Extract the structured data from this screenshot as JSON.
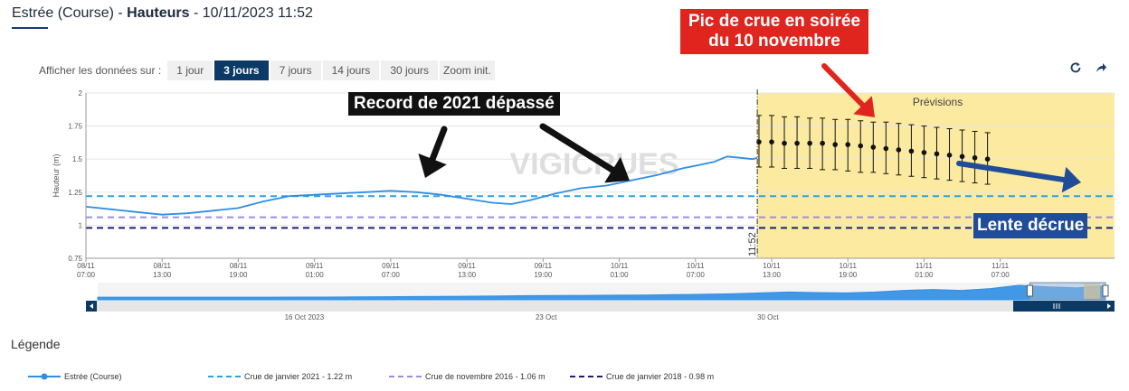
{
  "header": {
    "station": "Estrée (Course)",
    "separator1": " - ",
    "measure": "Hauteurs",
    "separator2": " - ",
    "datetime": "10/11/2023 11:52"
  },
  "range_selector": {
    "label": "Afficher les données sur :",
    "buttons": [
      {
        "label": "1 jour",
        "active": false
      },
      {
        "label": "3 jours",
        "active": true
      },
      {
        "label": "7 jours",
        "active": false
      },
      {
        "label": "14 jours",
        "active": false
      },
      {
        "label": "30 jours",
        "active": false
      },
      {
        "label": "Zoom init.",
        "active": false
      }
    ]
  },
  "tools": {
    "refresh_icon": "refresh-icon",
    "share_icon": "share-arrow-icon"
  },
  "annotations": {
    "record": "Record de 2021 dépassé",
    "pic_line1": "Pic de crue en soirée",
    "pic_line2": "du 10 novembre",
    "decrue": "Lente décrue"
  },
  "colors": {
    "series": "#2e8ee6",
    "crue2021": "#2aa3e6",
    "crue2016": "#9b8ce8",
    "crue2018": "#1a1f7a",
    "forecast_bg": "#fbeaa0",
    "arrow_black": "#111111",
    "arrow_red": "#e0251e",
    "arrow_blue": "#1f4d99"
  },
  "chart_data": {
    "type": "line",
    "ylabel": "Hauteur (m)",
    "ylim": [
      0.75,
      2
    ],
    "yticks": [
      0.75,
      1,
      1.25,
      1.5,
      1.75,
      2
    ],
    "ytick_labels": [
      "0.75",
      "1",
      "1.25",
      "1.5",
      "1.75",
      "2"
    ],
    "xlim": [
      0,
      81
    ],
    "x_unit": "hours after 08/11 07:00",
    "xticks": [
      {
        "x": 0,
        "l1": "08/11",
        "l2": "07:00"
      },
      {
        "x": 6,
        "l1": "08/11",
        "l2": "13:00"
      },
      {
        "x": 12,
        "l1": "08/11",
        "l2": "19:00"
      },
      {
        "x": 18,
        "l1": "09/11",
        "l2": "01:00"
      },
      {
        "x": 24,
        "l1": "09/11",
        "l2": "07:00"
      },
      {
        "x": 30,
        "l1": "09/11",
        "l2": "13:00"
      },
      {
        "x": 36,
        "l1": "09/11",
        "l2": "19:00"
      },
      {
        "x": 42,
        "l1": "10/11",
        "l2": "01:00"
      },
      {
        "x": 48,
        "l1": "10/11",
        "l2": "07:00"
      },
      {
        "x": 54,
        "l1": "10/11",
        "l2": "13:00"
      },
      {
        "x": 60,
        "l1": "10/11",
        "l2": "19:00"
      },
      {
        "x": 66,
        "l1": "11/11",
        "l2": "01:00"
      },
      {
        "x": 72,
        "l1": "11/11",
        "l2": "07:00"
      }
    ],
    "now": {
      "x": 52.87,
      "label": "11:52"
    },
    "forecast_label": "Prévisions",
    "watermark": "VIGICRUES",
    "series": [
      {
        "name": "Estrée (Course)",
        "points": [
          [
            0,
            1.14
          ],
          [
            2,
            1.12
          ],
          [
            4,
            1.1
          ],
          [
            6,
            1.08
          ],
          [
            8,
            1.09
          ],
          [
            10,
            1.11
          ],
          [
            12,
            1.13
          ],
          [
            14,
            1.18
          ],
          [
            16,
            1.22
          ],
          [
            18,
            1.23
          ],
          [
            20,
            1.24
          ],
          [
            22,
            1.25
          ],
          [
            24,
            1.26
          ],
          [
            26,
            1.25
          ],
          [
            28,
            1.23
          ],
          [
            30,
            1.2
          ],
          [
            32,
            1.17
          ],
          [
            33.5,
            1.16
          ],
          [
            35,
            1.19
          ],
          [
            37,
            1.24
          ],
          [
            39,
            1.28
          ],
          [
            41,
            1.3
          ],
          [
            43,
            1.34
          ],
          [
            45,
            1.38
          ],
          [
            47,
            1.43
          ],
          [
            48.5,
            1.46
          ],
          [
            49.5,
            1.48
          ],
          [
            50.5,
            1.52
          ],
          [
            51.5,
            1.51
          ],
          [
            52.5,
            1.5
          ],
          [
            52.87,
            1.51
          ]
        ]
      }
    ],
    "forecast": {
      "name": "Prévisions",
      "points": [
        [
          53,
          1.63,
          1.44,
          1.83
        ],
        [
          54,
          1.63,
          1.44,
          1.83
        ],
        [
          55,
          1.62,
          1.43,
          1.82
        ],
        [
          56,
          1.62,
          1.43,
          1.82
        ],
        [
          57,
          1.62,
          1.43,
          1.81
        ],
        [
          58,
          1.62,
          1.42,
          1.81
        ],
        [
          59,
          1.61,
          1.42,
          1.8
        ],
        [
          60,
          1.61,
          1.41,
          1.8
        ],
        [
          61,
          1.6,
          1.4,
          1.79
        ],
        [
          62,
          1.59,
          1.4,
          1.78
        ],
        [
          63,
          1.58,
          1.39,
          1.78
        ],
        [
          64,
          1.57,
          1.38,
          1.77
        ],
        [
          65,
          1.56,
          1.37,
          1.76
        ],
        [
          66,
          1.55,
          1.36,
          1.75
        ],
        [
          67,
          1.54,
          1.35,
          1.74
        ],
        [
          68,
          1.53,
          1.34,
          1.73
        ],
        [
          69,
          1.52,
          1.33,
          1.72
        ],
        [
          70,
          1.51,
          1.32,
          1.71
        ],
        [
          71,
          1.5,
          1.31,
          1.7
        ]
      ]
    },
    "thresholds": [
      {
        "name": "Crue de janvier 2021 - 1.22 m",
        "value": 1.22,
        "color": "#2aa3e6"
      },
      {
        "name": "Crue de novembre 2016 - 1.06 m",
        "value": 1.06,
        "color": "#9b8ce8"
      },
      {
        "name": "Crue de janvier 2018 - 0.98 m",
        "value": 0.98,
        "color": "#1a1f7a"
      }
    ]
  },
  "navigator": {
    "labels": [
      "16 Oct 2023",
      "23 Oct",
      "30 Oct"
    ],
    "label_positions_frac": [
      0.205,
      0.445,
      0.665
    ],
    "selection_frac": [
      0.925,
      1.0
    ],
    "profile": [
      0.15,
      0.15,
      0.15,
      0.15,
      0.15,
      0.15,
      0.15,
      0.16,
      0.16,
      0.17,
      0.18,
      0.19,
      0.2,
      0.21,
      0.22,
      0.24,
      0.25,
      0.26,
      0.27,
      0.28,
      0.3,
      0.32,
      0.35,
      0.4,
      0.45,
      0.42,
      0.4,
      0.45,
      0.55,
      0.6,
      0.55,
      0.65,
      0.85,
      0.75,
      0.7,
      0.8
    ]
  },
  "legend": {
    "title": "Légende"
  }
}
